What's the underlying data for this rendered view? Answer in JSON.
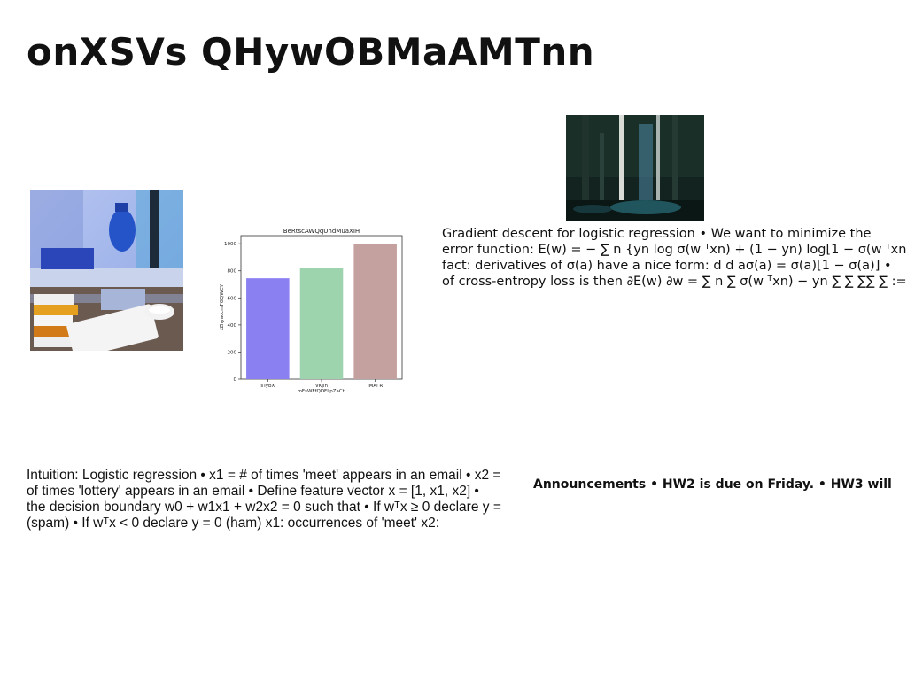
{
  "slide": {
    "title": "onXSVs QHywOBMaAMTnn"
  },
  "gradient_text": {
    "lines": [
      "Gradient descent for logistic regression • We want to minimize the",
      "error function: E(w) = − ∑ n {yn log σ(w ᵀxn) + (1 − yn) log[1 − σ(w ᵀxn)]} •",
      "fact: derivatives of σ(a) have a nice form: d d aσ(a) = σ(a)[1 − σ(a)] •",
      "of cross-entropy loss is then ∂E(w) ∂w = ∑ n ∑ σ(w ᵀxn) − yn ∑ ∑ ∑∑ ∑ :=en xn"
    ]
  },
  "intuition_text": {
    "lines": [
      "Intuition: Logistic regression • x1 = # of times 'meet' appears in an email • x2 =",
      "of times 'lottery' appears in an email • Define feature vector x = [1, x1, x2] •",
      "the decision boundary w0 + w1x1 + w2x2 = 0 such that • If wᵀx ≥ 0 declare y =",
      "(spam) • If wᵀx < 0 declare y = 0 (ham) x1: occurrences of 'meet' x2:"
    ]
  },
  "announcements_text": {
    "text": "Announcements • HW2 is due on Friday. • HW3 will"
  },
  "chart_data": {
    "type": "bar",
    "title": "BeRtscAWQqUndMuaXIH",
    "xlabel": "mFsWFfQDFLpZaCtl",
    "ylabel": "tZhyaccmFGQWCY",
    "categories": [
      "sTybX",
      "VKjih",
      "lMAi R"
    ],
    "values": [
      745,
      818,
      995
    ],
    "colors": [
      "#8b80f2",
      "#9dd3ad",
      "#c4a09e"
    ],
    "ylim": [
      0,
      1060
    ],
    "yticks": [
      0,
      200,
      400,
      600,
      800,
      1000
    ],
    "grid": false
  }
}
